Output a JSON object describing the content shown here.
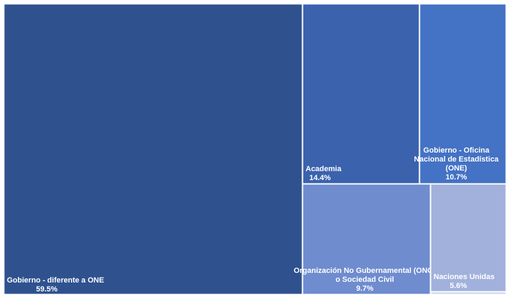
{
  "chart_data": {
    "type": "treemap",
    "title": "",
    "items": [
      {
        "name": "Gobierno - diferente a ONE",
        "value_label": "59.5%",
        "value": 59.5,
        "color": "#2f528f"
      },
      {
        "name": "Academia",
        "value_label": "14.4%",
        "value": 14.4,
        "color": "#3a62ad"
      },
      {
        "name": "Gobierno - Oficina Nacional de Estadística (ONE)",
        "value_label": "10.7%",
        "value": 10.7,
        "color": "#4472c4"
      },
      {
        "name": "Organización No Gubernamental (ONG) o Sociedad Civil",
        "value_label": "9.7%",
        "value": 9.7,
        "color": "#6f8ccf"
      },
      {
        "name": "Naciones Unidas",
        "value_label": "5.6%",
        "value": 5.6,
        "color": "#a1b1dc"
      },
      {
        "name": "",
        "value_label": "",
        "value": 0.1,
        "color": "#c9d2ec"
      }
    ]
  }
}
